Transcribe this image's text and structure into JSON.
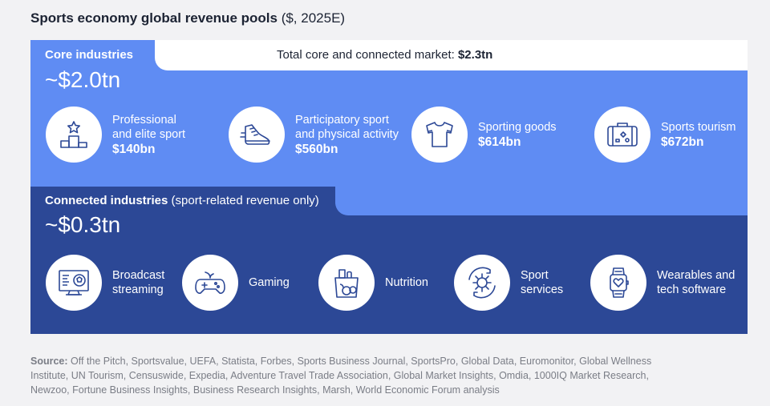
{
  "title": {
    "main": "Sports economy global revenue pools",
    "suffix": "($, 2025E)"
  },
  "total": {
    "label": "Total core and connected market:",
    "value": "$2.3tn"
  },
  "core": {
    "label": "Core industries",
    "value": "~$2.0tn",
    "items": [
      {
        "name_line1": "Professional",
        "name_line2": "and elite sport",
        "value": "$140bn",
        "icon": "podium-star-icon"
      },
      {
        "name_line1": "Participatory sport",
        "name_line2": "and physical activity",
        "value": "$560bn",
        "icon": "sneaker-icon"
      },
      {
        "name_line1": "Sporting goods",
        "name_line2": "",
        "value": "$614bn",
        "icon": "jersey-icon"
      },
      {
        "name_line1": "Sports tourism",
        "name_line2": "",
        "value": "$672bn",
        "icon": "suitcase-icon"
      }
    ]
  },
  "connected": {
    "label": "Connected industries",
    "label_note": "(sport-related revenue only)",
    "value": "~$0.3tn",
    "items": [
      {
        "name_line1": "Broadcast",
        "name_line2": "streaming",
        "icon": "monitor-ball-icon"
      },
      {
        "name_line1": "Gaming",
        "name_line2": "",
        "icon": "gamepad-icon"
      },
      {
        "name_line1": "Nutrition",
        "name_line2": "",
        "icon": "grocery-bag-icon"
      },
      {
        "name_line1": "Sport",
        "name_line2": "services",
        "icon": "gear-cycle-icon"
      },
      {
        "name_line1": "Wearables and",
        "name_line2": "tech software",
        "icon": "smartwatch-icon"
      }
    ]
  },
  "source": {
    "label": "Source:",
    "text": "Off the Pitch, Sportsvalue, UEFA, Statista, Forbes, Sports Business Journal, SportsPro, Global Data, Euromonitor, Global Wellness Institute, UN Tourism, Censuswide, Expedia, Adventure Travel Trade Association, Global Market Insights, Omdia, 1000IQ Market Research, Newzoo, Fortune Business Insights, Business Research Insights, Marsh, World Economic Forum analysis"
  },
  "colors": {
    "core": "#5f8cf3",
    "connected": "#2c4896",
    "icon_stroke": "#2c4896",
    "background": "#f2f2f4"
  }
}
